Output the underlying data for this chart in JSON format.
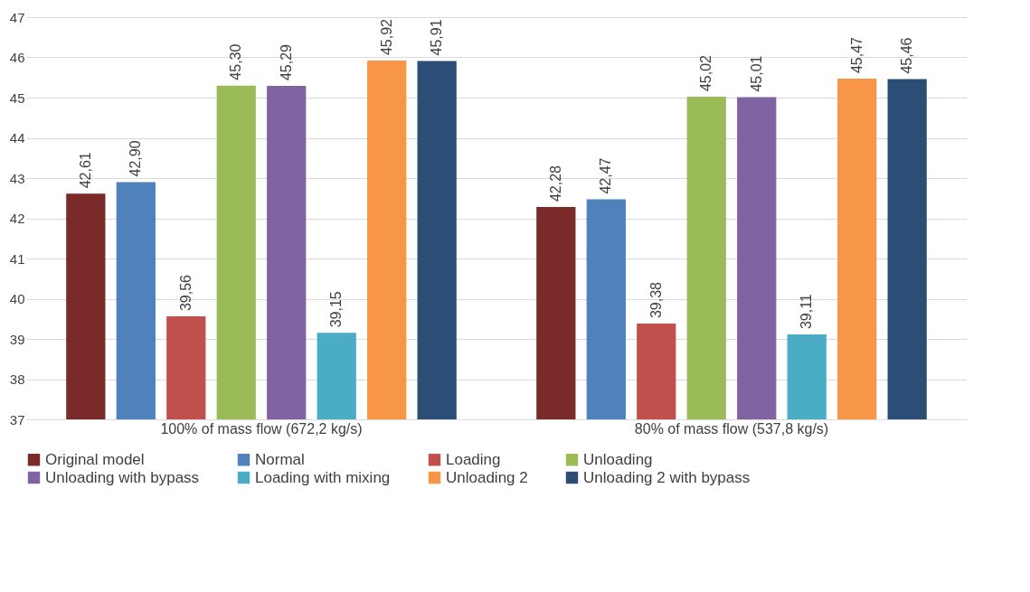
{
  "chart_data": {
    "type": "bar",
    "categories": [
      "100% of mass flow (672,2 kg/s)",
      "80% of mass flow (537,8 kg/s)"
    ],
    "series": [
      {
        "name": "Original model",
        "color": "#7b2a2a",
        "values": [
          42.61,
          42.28
        ],
        "value_labels": [
          "42,61",
          "42,28"
        ]
      },
      {
        "name": "Normal",
        "color": "#4f81bd",
        "values": [
          42.9,
          42.47
        ],
        "value_labels": [
          "42,90",
          "42,47"
        ]
      },
      {
        "name": "Loading",
        "color": "#c0504d",
        "values": [
          39.56,
          39.38
        ],
        "value_labels": [
          "39,56",
          "39,38"
        ]
      },
      {
        "name": "Unloading",
        "color": "#9bbb59",
        "values": [
          45.3,
          45.02
        ],
        "value_labels": [
          "45,30",
          "45,02"
        ]
      },
      {
        "name": "Unloading with bypass",
        "color": "#8064a2",
        "values": [
          45.29,
          45.01
        ],
        "value_labels": [
          "45,29",
          "45,01"
        ]
      },
      {
        "name": "Loading with mixing",
        "color": "#4bacc6",
        "values": [
          39.15,
          39.11
        ],
        "value_labels": [
          "39,15",
          "39,11"
        ]
      },
      {
        "name": "Unloading 2",
        "color": "#f79646",
        "values": [
          45.92,
          45.47
        ],
        "value_labels": [
          "45,92",
          "45,47"
        ]
      },
      {
        "name": "Unloading 2 with bypass",
        "color": "#2c4d75",
        "values": [
          45.91,
          45.46
        ],
        "value_labels": [
          "45,91",
          "45,46"
        ]
      }
    ],
    "ylim": [
      37,
      47
    ],
    "yticks": [
      37,
      38,
      39,
      40,
      41,
      42,
      43,
      44,
      45,
      46,
      47
    ],
    "grid": "y",
    "legend": "bottom"
  }
}
